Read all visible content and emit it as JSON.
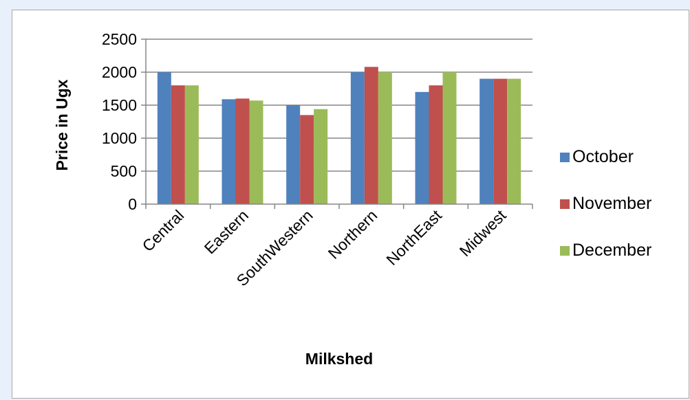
{
  "chart_data": {
    "type": "bar",
    "title": "",
    "xlabel": "Milkshed",
    "ylabel": "Price in Ugx",
    "ylim": [
      0,
      2500
    ],
    "yticks": [
      0,
      500,
      1000,
      1500,
      2000,
      2500
    ],
    "grid": true,
    "legend_position": "right",
    "categories": [
      "Central",
      "Eastern",
      "SouthWestern",
      "Northern",
      "NorthEast",
      "Midwest"
    ],
    "series": [
      {
        "name": "October",
        "color": "#4f81bd",
        "values": [
          2000,
          1590,
          1500,
          2000,
          1700,
          1900
        ]
      },
      {
        "name": "November",
        "color": "#c0504d",
        "values": [
          1800,
          1600,
          1350,
          2080,
          1800,
          1900
        ]
      },
      {
        "name": "December",
        "color": "#9bbb59",
        "values": [
          1800,
          1570,
          1440,
          2000,
          2000,
          1900
        ]
      }
    ]
  }
}
